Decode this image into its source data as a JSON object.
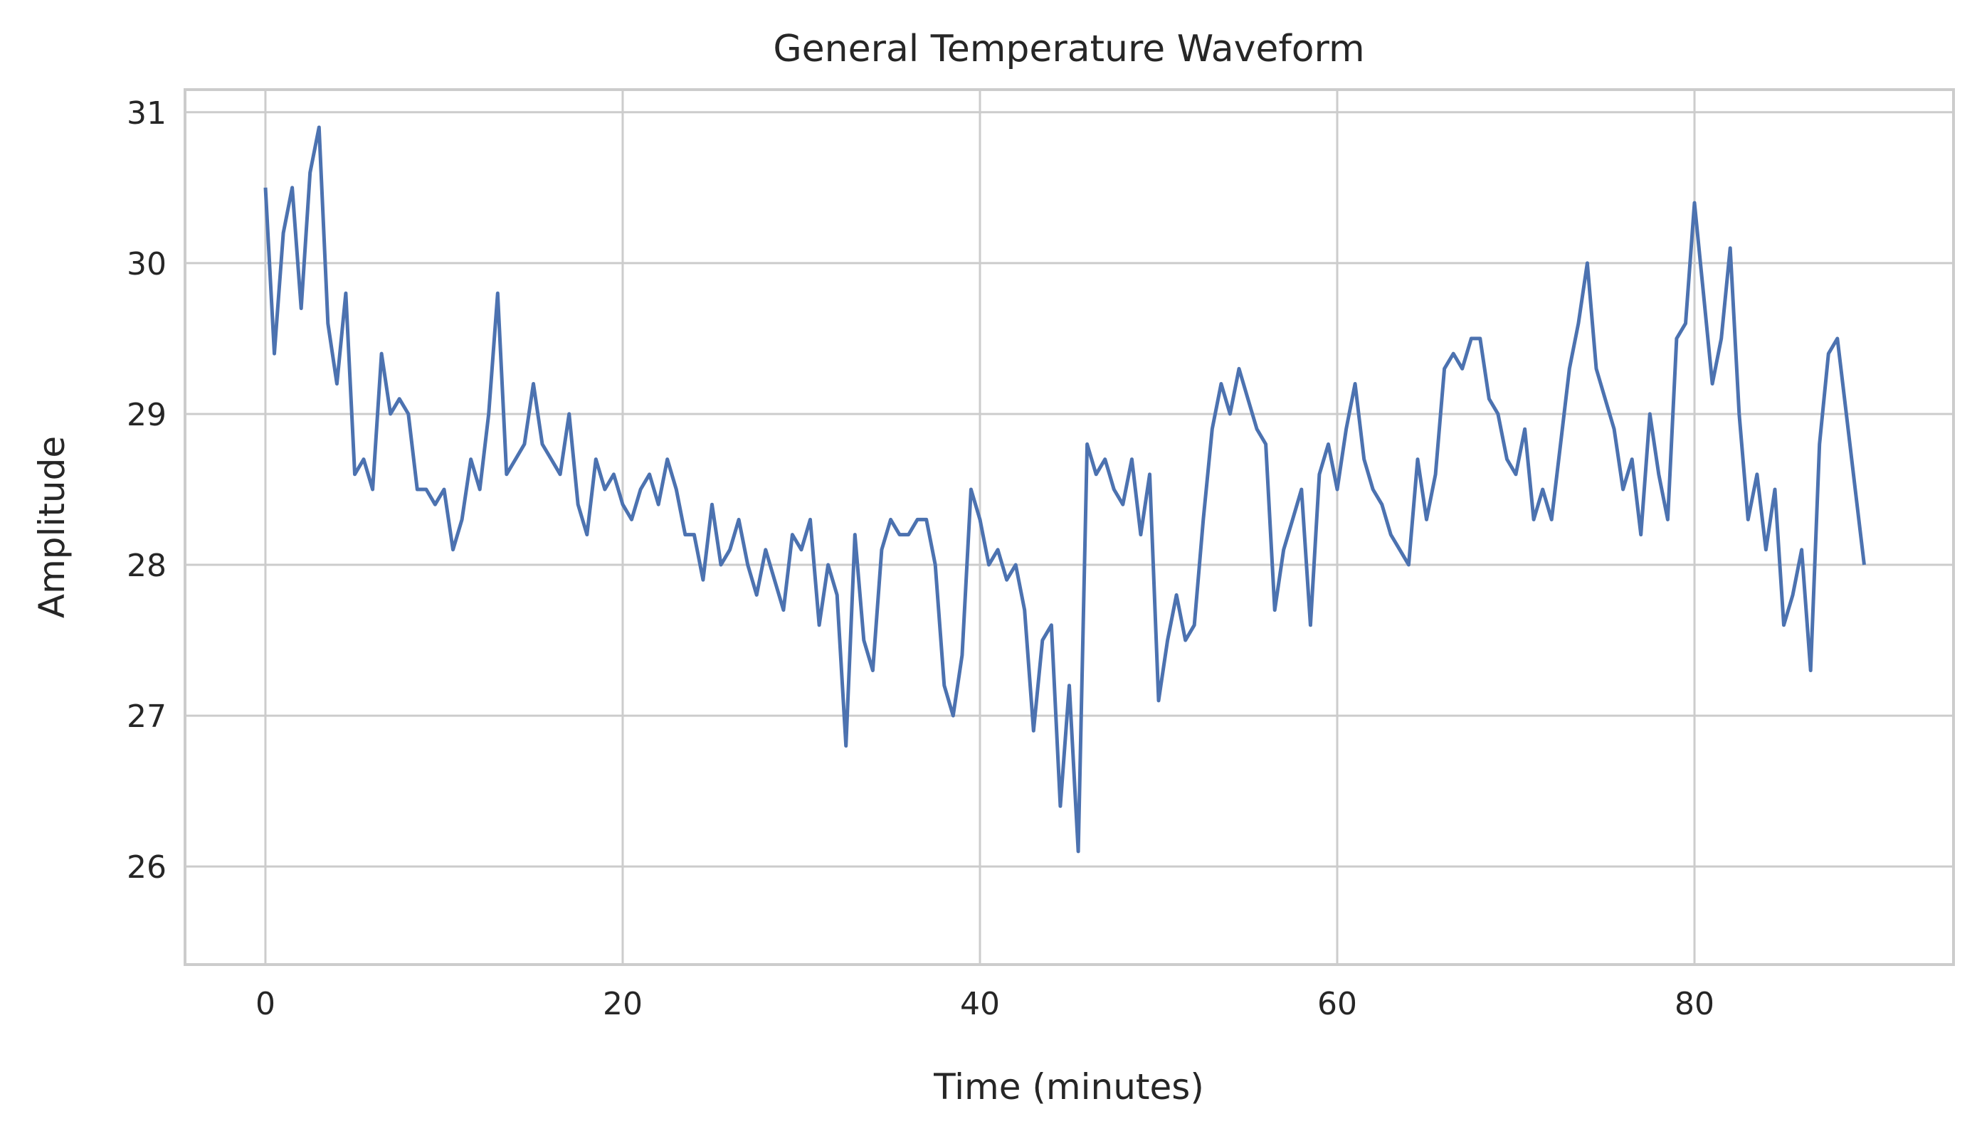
{
  "chart_data": {
    "type": "line",
    "title": "General Temperature Waveform",
    "xlabel": "Time (minutes)",
    "ylabel": "Amplitude",
    "xlim": [
      -4.5,
      94.5
    ],
    "ylim": [
      25.35,
      31.15
    ],
    "x_ticks": [
      0,
      20,
      40,
      60,
      80
    ],
    "y_ticks": [
      26,
      27,
      28,
      29,
      30,
      31
    ],
    "grid": true,
    "line_color": "#4c72b0",
    "series": [
      {
        "x": [
          0,
          0.5,
          1,
          1.5,
          2,
          2.5,
          3,
          3.5,
          4,
          4.5,
          5,
          5.5,
          6,
          6.5,
          7,
          7.5,
          8,
          8.5,
          9,
          9.5,
          10,
          10.5,
          11,
          11.5,
          12,
          12.5,
          13,
          13.5,
          14,
          14.5,
          15,
          15.5,
          16,
          16.5,
          17,
          17.5,
          18,
          18.5,
          19,
          19.5,
          20,
          20.5,
          21,
          21.5,
          22,
          22.5,
          23,
          23.5,
          24,
          24.5,
          25,
          25.5,
          26,
          26.5,
          27,
          27.5,
          28,
          28.5,
          29,
          29.5,
          30,
          30.5,
          31,
          31.5,
          32,
          32.5,
          33,
          33.5,
          34,
          34.5,
          35,
          35.5,
          36,
          36.5,
          37,
          37.5,
          38,
          38.5,
          39,
          39.5,
          40,
          40.5,
          41,
          41.5,
          42,
          42.5,
          43,
          43.5,
          44,
          44.5,
          45,
          45.5,
          46,
          46.5,
          47,
          47.5,
          48,
          48.5,
          49,
          49.5,
          50,
          50.5,
          51,
          51.5,
          52,
          52.5,
          53,
          53.5,
          54,
          54.5,
          55,
          55.5,
          56,
          56.5,
          57,
          57.5,
          58,
          58.5,
          59,
          59.5,
          60,
          60.5,
          61,
          61.5,
          62,
          62.5,
          63,
          63.5,
          64,
          64.5,
          65,
          65.5,
          66,
          66.5,
          67,
          67.5,
          68,
          68.5,
          69,
          69.5,
          70,
          70.5,
          71,
          71.5,
          72,
          72.5,
          73,
          73.5,
          74,
          74.5,
          75,
          75.5,
          76,
          76.5,
          77,
          77.5,
          78,
          78.5,
          79,
          79.5,
          80,
          80.5,
          81,
          81.5,
          82,
          82.5,
          83,
          83.5,
          84,
          84.5,
          85,
          85.5,
          86,
          86.5,
          87,
          87.5,
          88,
          88.5,
          89,
          89.5
        ],
        "values": [
          30.5,
          29.4,
          30.2,
          30.5,
          29.7,
          30.6,
          30.9,
          29.6,
          29.2,
          29.8,
          28.6,
          28.7,
          28.5,
          29.4,
          29.0,
          29.1,
          29.0,
          28.5,
          28.5,
          28.4,
          28.5,
          28.1,
          28.3,
          28.7,
          28.5,
          29.0,
          29.8,
          28.6,
          28.7,
          28.8,
          29.2,
          28.8,
          28.7,
          28.6,
          29.0,
          28.4,
          28.2,
          28.7,
          28.5,
          28.6,
          28.4,
          28.3,
          28.5,
          28.6,
          28.4,
          28.7,
          28.5,
          28.2,
          28.2,
          27.9,
          28.4,
          28.0,
          28.1,
          28.3,
          28.0,
          27.8,
          28.1,
          27.9,
          27.7,
          28.2,
          28.1,
          28.3,
          27.6,
          28.0,
          27.8,
          26.8,
          28.2,
          27.5,
          27.3,
          28.1,
          28.3,
          28.2,
          28.2,
          28.3,
          28.3,
          28.0,
          27.2,
          27.0,
          27.4,
          28.5,
          28.3,
          28.0,
          28.1,
          27.9,
          28.0,
          27.7,
          26.9,
          27.5,
          27.6,
          26.4,
          27.2,
          26.1,
          28.8,
          28.6,
          28.7,
          28.5,
          28.4,
          28.7,
          28.2,
          28.6,
          27.1,
          27.5,
          27.8,
          27.5,
          27.6,
          28.3,
          28.9,
          29.2,
          29.0,
          29.3,
          29.1,
          28.9,
          28.8,
          27.7,
          28.1,
          28.3,
          28.5,
          27.6,
          28.6,
          28.8,
          28.5,
          28.9,
          29.2,
          28.7,
          28.5,
          28.4,
          28.2,
          28.1,
          28.0,
          28.7,
          28.3,
          28.6,
          29.3,
          29.4,
          29.3,
          29.5,
          29.5,
          29.1,
          29.0,
          28.7,
          28.6,
          28.9,
          28.3,
          28.5,
          28.3,
          28.8,
          29.3,
          29.6,
          30.0,
          29.3,
          29.1,
          28.9,
          28.5,
          28.7,
          28.2,
          29.0,
          28.6,
          28.3,
          29.5,
          29.6,
          30.4,
          29.8,
          29.2,
          29.5,
          30.1,
          29.0,
          28.3,
          28.6,
          28.1,
          28.5,
          27.6,
          27.8,
          28.1,
          27.3,
          28.8,
          29.4,
          29.5,
          29.0,
          28.5,
          28.0
        ]
      }
    ]
  }
}
